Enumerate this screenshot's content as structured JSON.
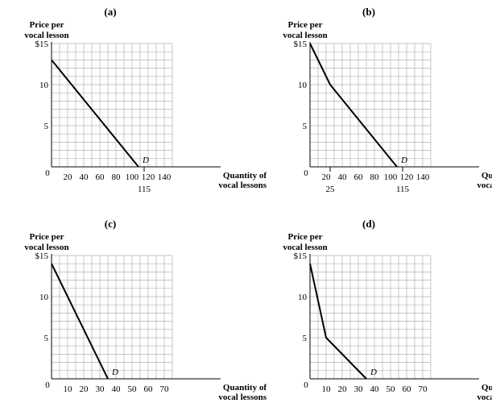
{
  "chart_data": [
    {
      "type": "line",
      "title": "(a)",
      "ylabel": [
        "Price per",
        "vocal lesson"
      ],
      "xlabel": [
        "Quantity of",
        "vocal lessons"
      ],
      "xlim": [
        0,
        150
      ],
      "ylim": [
        0,
        15
      ],
      "x_ticks": [
        20,
        40,
        60,
        80,
        100,
        120,
        140
      ],
      "x_extra_ticks": [
        115
      ],
      "x_origin_label": "0",
      "y_ticks": [
        {
          "v": 5,
          "label": "5"
        },
        {
          "v": 10,
          "label": "10"
        },
        {
          "v": 15,
          "label": "$15"
        }
      ],
      "series": [
        {
          "name": "D",
          "points": [
            [
              0,
              13
            ],
            [
              108,
              0
            ]
          ]
        }
      ],
      "curve_label": "D"
    },
    {
      "type": "line",
      "title": "(b)",
      "ylabel": [
        "Price per",
        "vocal lesson"
      ],
      "xlabel": [
        "Quantity of",
        "vocal lessons"
      ],
      "xlim": [
        0,
        150
      ],
      "ylim": [
        0,
        15
      ],
      "x_ticks": [
        20,
        40,
        60,
        80,
        100,
        120,
        140
      ],
      "x_extra_ticks": [
        25,
        115
      ],
      "x_origin_label": "0",
      "y_ticks": [
        {
          "v": 5,
          "label": "5"
        },
        {
          "v": 10,
          "label": "10"
        },
        {
          "v": 15,
          "label": "$15"
        }
      ],
      "series": [
        {
          "name": "D",
          "points": [
            [
              0,
              15
            ],
            [
              25,
              10
            ],
            [
              108,
              0
            ]
          ]
        }
      ],
      "curve_label": "D"
    },
    {
      "type": "line",
      "title": "(c)",
      "ylabel": [
        "Price per",
        "vocal lesson"
      ],
      "xlabel": [
        "Quantity of",
        "vocal lessons"
      ],
      "xlim": [
        0,
        75
      ],
      "ylim": [
        0,
        15
      ],
      "x_ticks": [
        10,
        20,
        30,
        40,
        50,
        60,
        70
      ],
      "x_extra_ticks": [],
      "x_origin_label": "0",
      "y_ticks": [
        {
          "v": 5,
          "label": "5"
        },
        {
          "v": 10,
          "label": "10"
        },
        {
          "v": 15,
          "label": "$15"
        }
      ],
      "series": [
        {
          "name": "D",
          "points": [
            [
              0,
              14
            ],
            [
              35,
              0
            ]
          ]
        }
      ],
      "curve_label": "D"
    },
    {
      "type": "line",
      "title": "(d)",
      "ylabel": [
        "Price per",
        "vocal lesson"
      ],
      "xlabel": [
        "Quantity of",
        "vocal lessons"
      ],
      "xlim": [
        0,
        75
      ],
      "ylim": [
        0,
        15
      ],
      "x_ticks": [
        10,
        20,
        30,
        40,
        50,
        60,
        70
      ],
      "x_extra_ticks": [],
      "x_origin_label": "0",
      "y_ticks": [
        {
          "v": 5,
          "label": "5"
        },
        {
          "v": 10,
          "label": "10"
        },
        {
          "v": 15,
          "label": "$15"
        }
      ],
      "series": [
        {
          "name": "D",
          "points": [
            [
              0,
              14
            ],
            [
              10,
              5
            ],
            [
              35,
              0
            ]
          ]
        }
      ],
      "curve_label": "D"
    }
  ]
}
